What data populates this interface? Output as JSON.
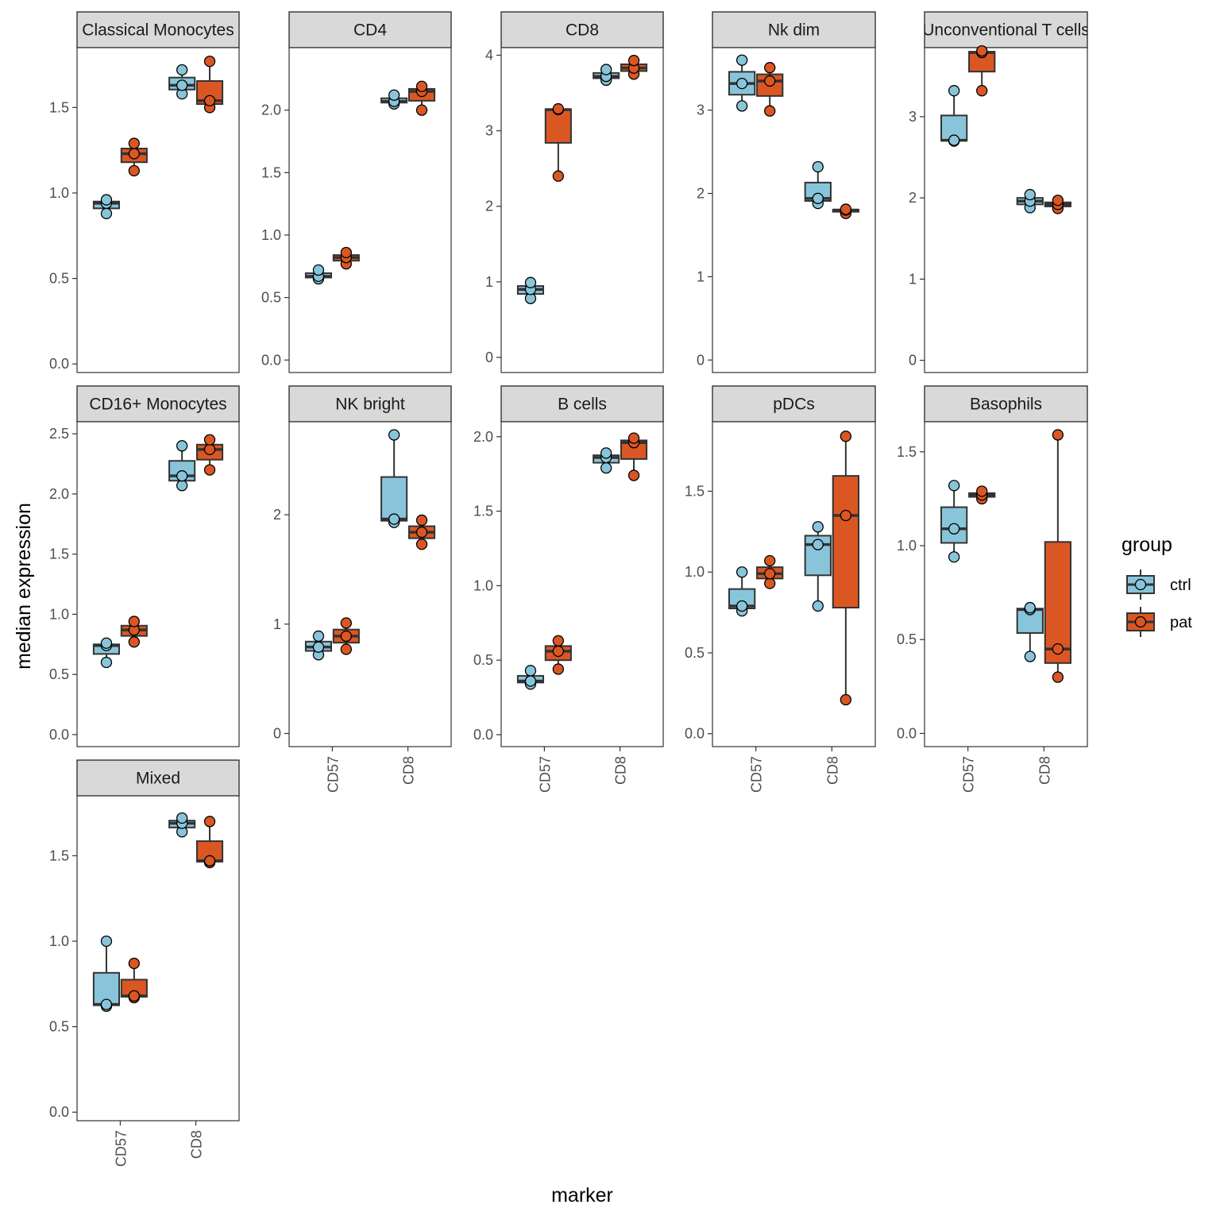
{
  "chart_data": {
    "type": "box",
    "xlabel": "marker",
    "ylabel": "median  expression",
    "categories": [
      "CD57",
      "CD8"
    ],
    "legend": {
      "title": "group",
      "position": "right",
      "entries": [
        {
          "name": "ctrl",
          "color": "#89C5DA"
        },
        {
          "name": "pat",
          "color": "#DA5724"
        }
      ]
    },
    "panels": [
      {
        "title": "Classical Monocytes",
        "ylim": [
          -0.05,
          1.85
        ],
        "ticks": [
          0.0,
          0.5,
          1.0,
          1.5
        ],
        "tick_labels": [
          "0.0",
          "0.5",
          "1.0",
          "1.5"
        ],
        "points": {
          "CD57": {
            "ctrl": [
              0.88,
              0.94,
              0.96
            ],
            "pat": [
              1.13,
              1.23,
              1.29
            ]
          },
          "CD8": {
            "ctrl": [
              1.58,
              1.63,
              1.72
            ],
            "pat": [
              1.5,
              1.54,
              1.77
            ]
          }
        }
      },
      {
        "title": "CD4",
        "ylim": [
          -0.1,
          2.5
        ],
        "ticks": [
          0.0,
          0.5,
          1.0,
          1.5,
          2.0
        ],
        "tick_labels": [
          "0.0",
          "0.5",
          "1.0",
          "1.5",
          "2.0"
        ],
        "points": {
          "CD57": {
            "ctrl": [
              0.65,
              0.67,
              0.72
            ],
            "pat": [
              0.77,
              0.82,
              0.86
            ]
          },
          "CD8": {
            "ctrl": [
              2.05,
              2.07,
              2.12
            ],
            "pat": [
              2.0,
              2.15,
              2.19
            ]
          }
        }
      },
      {
        "title": "CD8",
        "ylim": [
          -0.2,
          4.1
        ],
        "ticks": [
          0,
          1,
          2,
          3,
          4
        ],
        "tick_labels": [
          "0",
          "1",
          "2",
          "3",
          "4"
        ],
        "points": {
          "CD57": {
            "ctrl": [
              0.78,
              0.9,
              0.99
            ],
            "pat": [
              2.4,
              3.28,
              3.29
            ]
          },
          "CD8": {
            "ctrl": [
              3.67,
              3.72,
              3.81
            ],
            "pat": [
              3.75,
              3.83,
              3.93
            ]
          }
        }
      },
      {
        "title": "Nk dim",
        "ylim": [
          -0.15,
          3.75
        ],
        "ticks": [
          0,
          1,
          2,
          3
        ],
        "tick_labels": [
          "0",
          "1",
          "2",
          "3"
        ],
        "points": {
          "CD57": {
            "ctrl": [
              3.05,
              3.32,
              3.6
            ],
            "pat": [
              2.99,
              3.35,
              3.51
            ]
          },
          "CD8": {
            "ctrl": [
              1.88,
              1.94,
              2.32
            ],
            "pat": [
              1.76,
              1.8,
              1.81
            ]
          }
        }
      },
      {
        "title": "Unconventional T cells",
        "ylim": [
          -0.15,
          3.85
        ],
        "ticks": [
          0,
          1,
          2,
          3
        ],
        "tick_labels": [
          "0",
          "1",
          "2",
          "3"
        ],
        "points": {
          "CD57": {
            "ctrl": [
              2.7,
              2.71,
              3.32
            ],
            "pat": [
              3.32,
              3.79,
              3.81
            ]
          },
          "CD8": {
            "ctrl": [
              1.88,
              1.96,
              2.04
            ],
            "pat": [
              1.87,
              1.92,
              1.97
            ]
          }
        }
      },
      {
        "title": "CD16+ Monocytes",
        "ylim": [
          -0.1,
          2.6
        ],
        "ticks": [
          0.0,
          0.5,
          1.0,
          1.5,
          2.0,
          2.5
        ],
        "tick_labels": [
          "0.0",
          "0.5",
          "1.0",
          "1.5",
          "2.0",
          "2.5"
        ],
        "points": {
          "CD57": {
            "ctrl": [
              0.6,
              0.74,
              0.76
            ],
            "pat": [
              0.77,
              0.87,
              0.94
            ]
          },
          "CD8": {
            "ctrl": [
              2.07,
              2.15,
              2.4
            ],
            "pat": [
              2.2,
              2.37,
              2.45
            ]
          }
        }
      },
      {
        "title": "NK bright",
        "ylim": [
          -0.12,
          2.85
        ],
        "ticks": [
          0,
          1,
          2
        ],
        "tick_labels": [
          "0",
          "1",
          "2"
        ],
        "points": {
          "CD57": {
            "ctrl": [
              0.72,
              0.79,
              0.89
            ],
            "pat": [
              0.77,
              0.89,
              1.01
            ]
          },
          "CD8": {
            "ctrl": [
              1.93,
              1.96,
              2.73
            ],
            "pat": [
              1.73,
              1.84,
              1.95
            ]
          }
        }
      },
      {
        "title": "B cells",
        "ylim": [
          -0.08,
          2.1
        ],
        "ticks": [
          0.0,
          0.5,
          1.0,
          1.5,
          2.0
        ],
        "tick_labels": [
          "0.0",
          "0.5",
          "1.0",
          "1.5",
          "2.0"
        ],
        "points": {
          "CD57": {
            "ctrl": [
              0.34,
              0.36,
              0.43
            ],
            "pat": [
              0.44,
              0.56,
              0.63
            ]
          },
          "CD8": {
            "ctrl": [
              1.79,
              1.86,
              1.89
            ],
            "pat": [
              1.74,
              1.96,
              1.99
            ]
          }
        }
      },
      {
        "title": "pDCs",
        "ylim": [
          -0.08,
          1.93
        ],
        "ticks": [
          0.0,
          0.5,
          1.0,
          1.5
        ],
        "tick_labels": [
          "0.0",
          "0.5",
          "1.0",
          "1.5"
        ],
        "points": {
          "CD57": {
            "ctrl": [
              0.76,
              0.79,
              1.0
            ],
            "pat": [
              0.93,
              0.99,
              1.07
            ]
          },
          "CD8": {
            "ctrl": [
              0.79,
              1.17,
              1.28
            ],
            "pat": [
              0.21,
              1.35,
              1.84
            ]
          }
        }
      },
      {
        "title": "Basophils",
        "ylim": [
          -0.07,
          1.66
        ],
        "ticks": [
          0.0,
          0.5,
          1.0,
          1.5
        ],
        "tick_labels": [
          "0.0",
          "0.5",
          "1.0",
          "1.5"
        ],
        "points": {
          "CD57": {
            "ctrl": [
              0.94,
              1.09,
              1.32
            ],
            "pat": [
              1.25,
              1.27,
              1.29
            ]
          },
          "CD8": {
            "ctrl": [
              0.41,
              0.66,
              0.67
            ],
            "pat": [
              0.3,
              0.45,
              1.59
            ]
          }
        }
      },
      {
        "title": "Mixed",
        "ylim": [
          -0.05,
          1.85
        ],
        "ticks": [
          0.0,
          0.5,
          1.0,
          1.5
        ],
        "tick_labels": [
          "0.0",
          "0.5",
          "1.0",
          "1.5"
        ],
        "points": {
          "CD57": {
            "ctrl": [
              0.62,
              0.63,
              1.0
            ],
            "pat": [
              0.67,
              0.68,
              0.87
            ]
          },
          "CD8": {
            "ctrl": [
              1.64,
              1.69,
              1.72
            ],
            "pat": [
              1.46,
              1.47,
              1.7
            ]
          }
        }
      }
    ]
  }
}
